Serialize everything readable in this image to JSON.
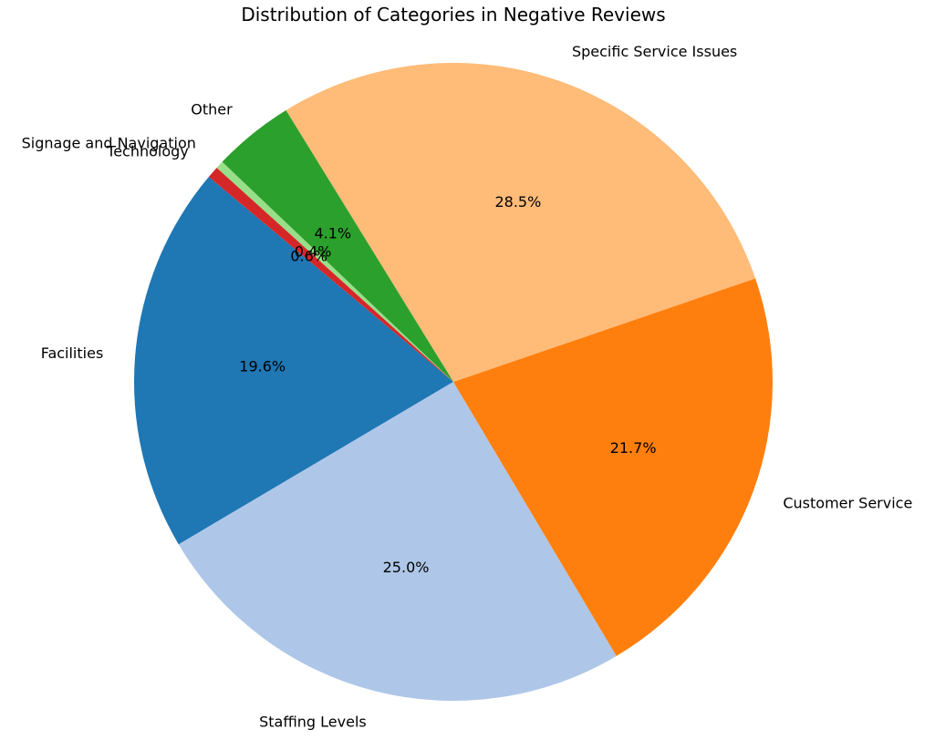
{
  "chart_data": {
    "type": "pie",
    "title": "Distribution of Categories in Negative Reviews",
    "start_angle_deg": 140,
    "direction": "counterclockwise",
    "slices": [
      {
        "label": "Facilities",
        "value": 19.6,
        "pct_label": "19.6%",
        "color": "#1f77b4"
      },
      {
        "label": "Staffing Levels",
        "value": 25.0,
        "pct_label": "25.0%",
        "color": "#aec7e8"
      },
      {
        "label": "Customer Service",
        "value": 21.7,
        "pct_label": "21.7%",
        "color": "#ff7f0e"
      },
      {
        "label": "Specific Service Issues",
        "value": 28.5,
        "pct_label": "28.5%",
        "color": "#ffbb78"
      },
      {
        "label": "Other",
        "value": 4.1,
        "pct_label": "4.1%",
        "color": "#2ca02c"
      },
      {
        "label": "Signage and Navigation",
        "value": 0.4,
        "pct_label": "0.4%",
        "color": "#98df8a"
      },
      {
        "label": "Technology",
        "value": 0.6,
        "pct_label": "0.6%",
        "color": "#d62728"
      }
    ]
  }
}
